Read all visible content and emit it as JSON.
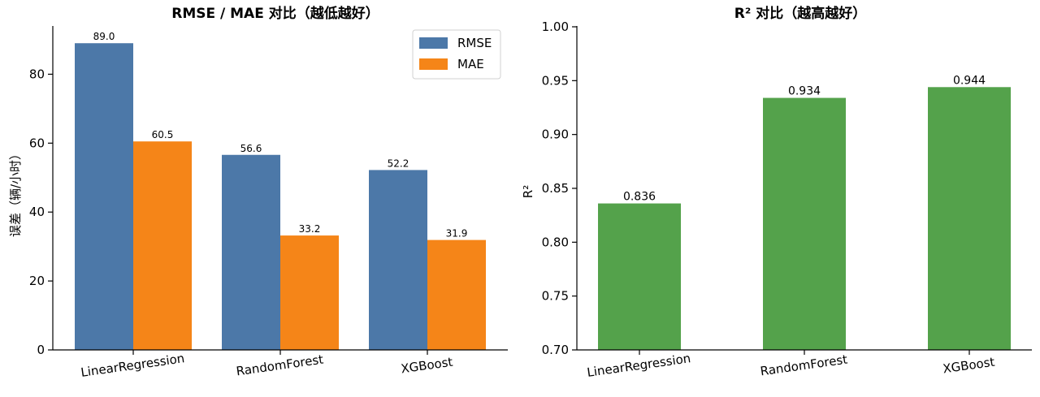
{
  "chart_data": [
    {
      "type": "bar",
      "title": "RMSE / MAE 对比（越低越好）",
      "xlabel": "",
      "ylabel": "误差（辆/小时）",
      "categories": [
        "LinearRegression",
        "RandomForest",
        "XGBoost"
      ],
      "series": [
        {
          "name": "RMSE",
          "values": [
            89.0,
            56.6,
            52.2
          ],
          "labels": [
            "89.0",
            "56.6",
            "52.2"
          ],
          "color": "#4c78a8"
        },
        {
          "name": "MAE",
          "values": [
            60.5,
            33.2,
            31.9
          ],
          "labels": [
            "60.5",
            "33.2",
            "31.9"
          ],
          "color": "#f58518"
        }
      ],
      "ylim": [
        0,
        94
      ],
      "yticks": [
        0,
        20,
        40,
        60,
        80
      ],
      "ytick_labels": [
        "0",
        "20",
        "40",
        "60",
        "80"
      ],
      "legend": "top-right",
      "grid": false
    },
    {
      "type": "bar",
      "title": "R² 对比（越高越好）",
      "xlabel": "",
      "ylabel": "R²",
      "categories": [
        "LinearRegression",
        "RandomForest",
        "XGBoost"
      ],
      "series": [
        {
          "values": [
            0.836,
            0.934,
            0.944
          ],
          "labels": [
            "0.836",
            "0.934",
            "0.944"
          ],
          "color": "#54a24b"
        }
      ],
      "ylim": [
        0.7,
        1.0
      ],
      "yticks": [
        0.7,
        0.75,
        0.8,
        0.85,
        0.9,
        0.95,
        1.0
      ],
      "ytick_labels": [
        "0.70",
        "0.75",
        "0.80",
        "0.85",
        "0.90",
        "0.95",
        "1.00"
      ],
      "grid": false
    }
  ]
}
